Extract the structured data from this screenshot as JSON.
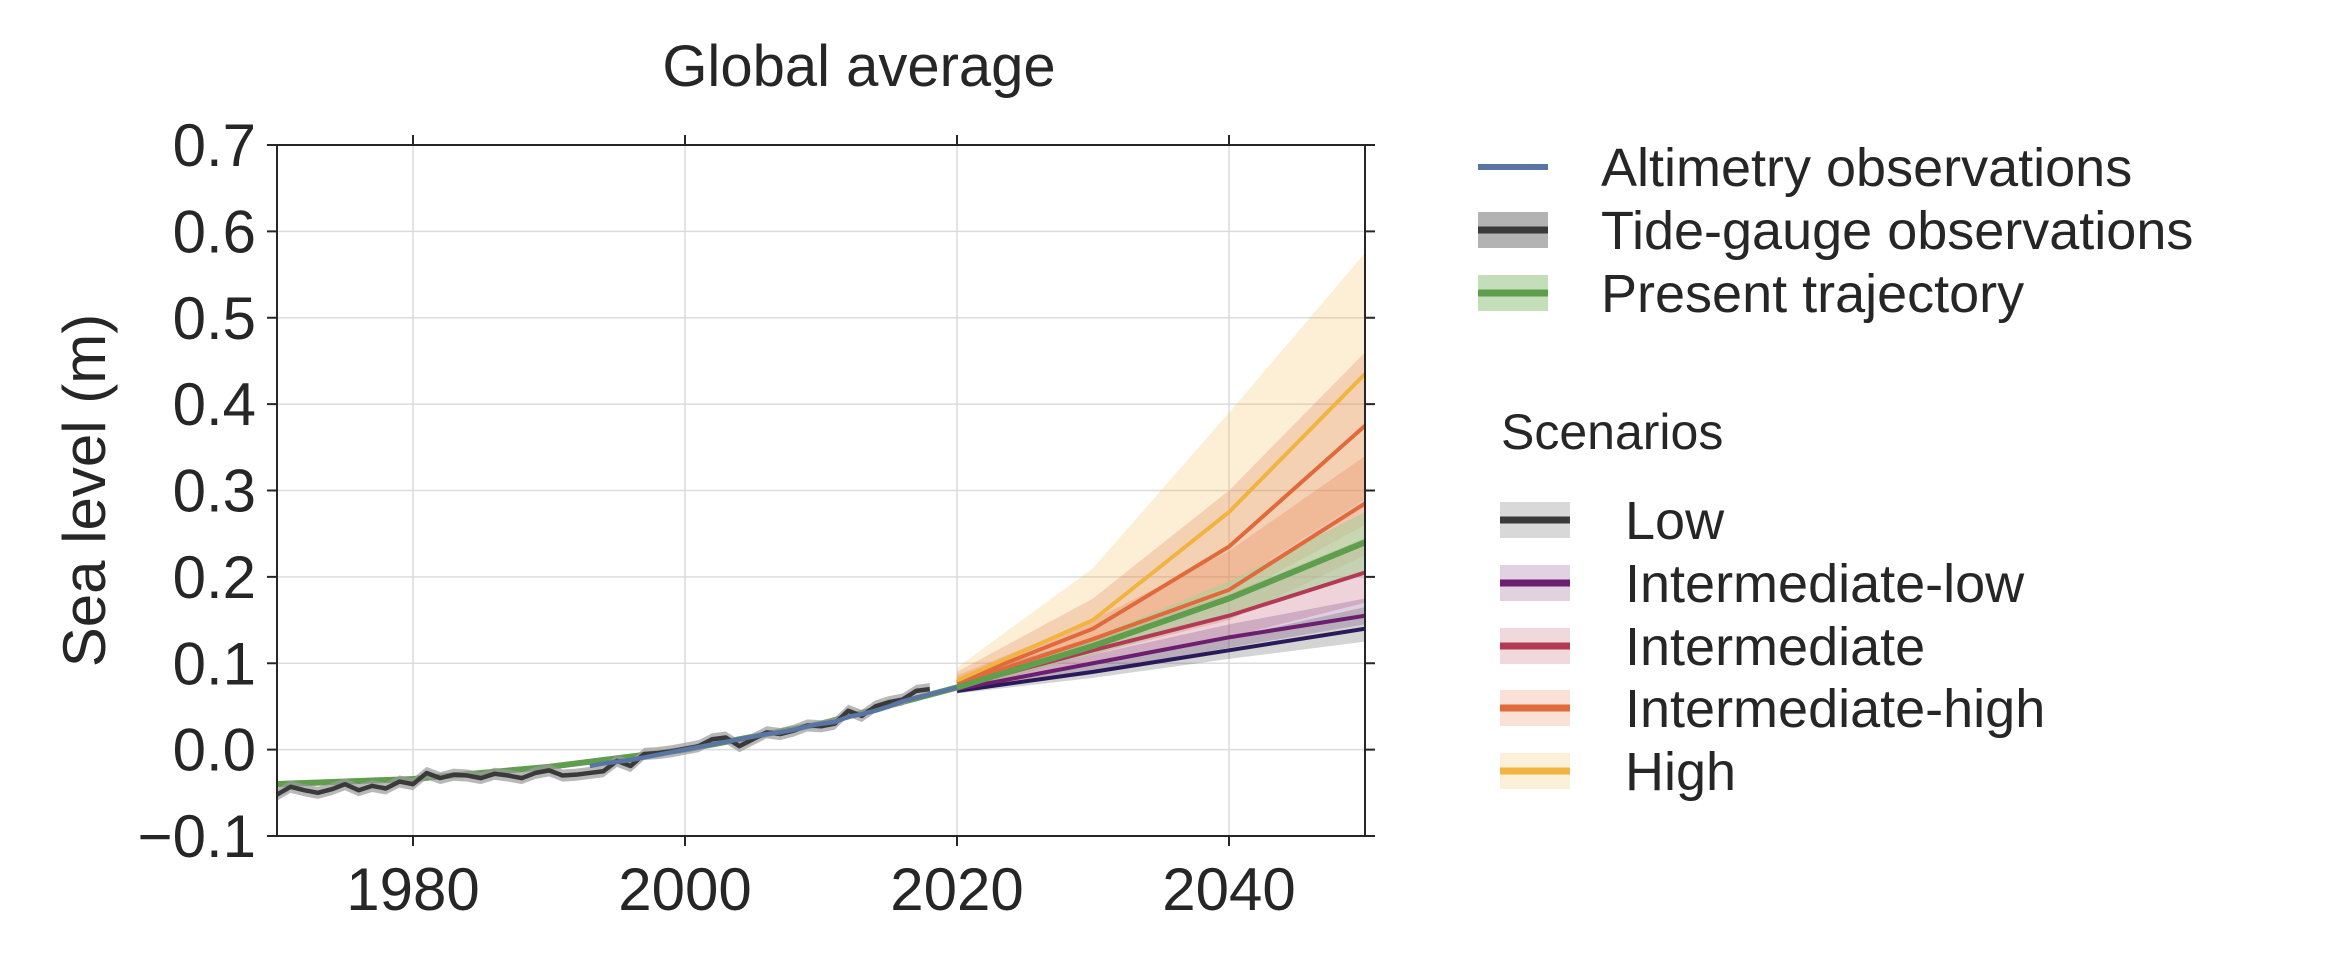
{
  "chart_data": {
    "type": "line",
    "title": "Global average",
    "xlabel": "",
    "ylabel": "Sea level (m)",
    "xlim": [
      1970,
      2050
    ],
    "ylim": [
      -0.1,
      0.7
    ],
    "x_ticks": [
      1980,
      2000,
      2020,
      2040
    ],
    "x_tick_labels": [
      "1980",
      "2000",
      "2020",
      "2040"
    ],
    "y_ticks": [
      -0.1,
      0.0,
      0.1,
      0.2,
      0.3,
      0.4,
      0.5,
      0.6,
      0.7
    ],
    "y_tick_labels": [
      "−0.1",
      "0.0",
      "0.1",
      "0.2",
      "0.3",
      "0.4",
      "0.5",
      "0.6",
      "0.7"
    ],
    "grid": true,
    "legend_position": "right",
    "legend_heading": "Scenarios",
    "colors": {
      "altimetry": "#5875a4",
      "tide_gauge": "#3a3a3a",
      "tide_gauge_band": "#9a9a9a",
      "trajectory": "#5f9e4d",
      "trajectory_band": "#a9d09a",
      "low": "#3a3a3a",
      "intermediate_low": "#6b1f6e",
      "intermediate": "#b23a55",
      "intermediate_high": "#e06a3a",
      "high": "#f1b440",
      "low_line": "#2a1a5a"
    },
    "observations": [
      {
        "name": "Altimetry observations",
        "key": "altimetry",
        "x": [
          1993,
          1994,
          1995,
          1996,
          1997,
          1998,
          1999,
          2000,
          2001,
          2002,
          2003,
          2004,
          2005,
          2006,
          2007,
          2008,
          2009,
          2010,
          2011,
          2012,
          2013,
          2014,
          2015,
          2016,
          2017,
          2018,
          2019,
          2020
        ],
        "y": [
          -0.019,
          -0.016,
          -0.014,
          -0.012,
          -0.009,
          -0.006,
          -0.003,
          0.0,
          0.003,
          0.006,
          0.009,
          0.012,
          0.015,
          0.018,
          0.02,
          0.023,
          0.027,
          0.03,
          0.032,
          0.038,
          0.041,
          0.045,
          0.05,
          0.056,
          0.06,
          0.064,
          0.068,
          0.072
        ]
      },
      {
        "name": "Tide-gauge observations",
        "key": "tide_gauge",
        "x": [
          1970,
          1971,
          1972,
          1973,
          1974,
          1975,
          1976,
          1977,
          1978,
          1979,
          1980,
          1981,
          1982,
          1983,
          1984,
          1985,
          1986,
          1987,
          1988,
          1989,
          1990,
          1991,
          1992,
          1993,
          1994,
          1995,
          1996,
          1997,
          1998,
          1999,
          2000,
          2001,
          2002,
          2003,
          2004,
          2005,
          2006,
          2007,
          2008,
          2009,
          2010,
          2011,
          2012,
          2013,
          2014,
          2015,
          2016,
          2017,
          2018
        ],
        "y": [
          -0.052,
          -0.043,
          -0.047,
          -0.05,
          -0.046,
          -0.04,
          -0.047,
          -0.042,
          -0.045,
          -0.037,
          -0.04,
          -0.027,
          -0.033,
          -0.029,
          -0.03,
          -0.033,
          -0.028,
          -0.03,
          -0.033,
          -0.027,
          -0.024,
          -0.03,
          -0.029,
          -0.027,
          -0.025,
          -0.013,
          -0.019,
          -0.005,
          -0.004,
          -0.002,
          0.001,
          0.004,
          0.012,
          0.014,
          0.004,
          0.012,
          0.02,
          0.018,
          0.022,
          0.028,
          0.027,
          0.03,
          0.045,
          0.039,
          0.05,
          0.055,
          0.058,
          0.068,
          0.07
        ],
        "band_halfwidth": 0.007
      },
      {
        "name": "Present trajectory",
        "key": "trajectory",
        "x": [
          1970,
          1980,
          1990,
          2000,
          2010,
          2020,
          2030,
          2040,
          2050
        ],
        "y": [
          -0.04,
          -0.034,
          -0.02,
          0.0,
          0.03,
          0.072,
          0.12,
          0.175,
          0.24
        ],
        "band_lo": [
          -0.044,
          -0.037,
          -0.023,
          -0.003,
          0.027,
          0.069,
          0.11,
          0.155,
          0.205
        ],
        "band_hi": [
          -0.036,
          -0.031,
          -0.017,
          0.003,
          0.033,
          0.075,
          0.13,
          0.195,
          0.275
        ]
      }
    ],
    "scenarios": [
      {
        "name": "Low",
        "key": "low",
        "x": [
          2020,
          2030,
          2040,
          2050
        ],
        "y": [
          0.068,
          0.09,
          0.115,
          0.14
        ],
        "lo": [
          0.065,
          0.083,
          0.105,
          0.125
        ],
        "hi": [
          0.073,
          0.1,
          0.13,
          0.165
        ]
      },
      {
        "name": "Intermediate-low",
        "key": "intermediate_low",
        "x": [
          2020,
          2030,
          2040,
          2050
        ],
        "y": [
          0.07,
          0.1,
          0.13,
          0.155
        ],
        "lo": [
          0.065,
          0.09,
          0.118,
          0.145
        ],
        "hi": [
          0.078,
          0.11,
          0.145,
          0.175
        ]
      },
      {
        "name": "Intermediate",
        "key": "intermediate",
        "x": [
          2020,
          2030,
          2040,
          2050
        ],
        "y": [
          0.073,
          0.115,
          0.155,
          0.205
        ],
        "lo": [
          0.066,
          0.1,
          0.13,
          0.17
        ],
        "hi": [
          0.082,
          0.13,
          0.18,
          0.245
        ]
      },
      {
        "name": "Intermediate-high",
        "key": "intermediate_high",
        "x": [
          2020,
          2030,
          2040,
          2050
        ],
        "y": [
          0.076,
          0.128,
          0.185,
          0.285
        ],
        "lo": [
          0.068,
          0.11,
          0.15,
          0.225
        ],
        "hi": [
          0.086,
          0.15,
          0.23,
          0.34
        ]
      },
      {
        "name": "Intermediate-high (upper)",
        "key": "intermediate_high",
        "x": [
          2020,
          2030,
          2040,
          2050
        ],
        "y": [
          0.078,
          0.14,
          0.235,
          0.375
        ],
        "lo": [
          0.068,
          0.115,
          0.175,
          0.26
        ],
        "hi": [
          0.09,
          0.175,
          0.3,
          0.46
        ]
      },
      {
        "name": "High",
        "key": "high",
        "x": [
          2020,
          2030,
          2040,
          2050
        ],
        "y": [
          0.08,
          0.15,
          0.275,
          0.435
        ],
        "lo": [
          0.068,
          0.12,
          0.19,
          0.29
        ],
        "hi": [
          0.095,
          0.21,
          0.39,
          0.575
        ]
      }
    ],
    "legend_observations": [
      "Altimetry observations",
      "Tide-gauge observations",
      "Present trajectory"
    ],
    "legend_scenarios": [
      "Low",
      "Intermediate-low",
      "Intermediate",
      "Intermediate-high",
      "High"
    ]
  }
}
